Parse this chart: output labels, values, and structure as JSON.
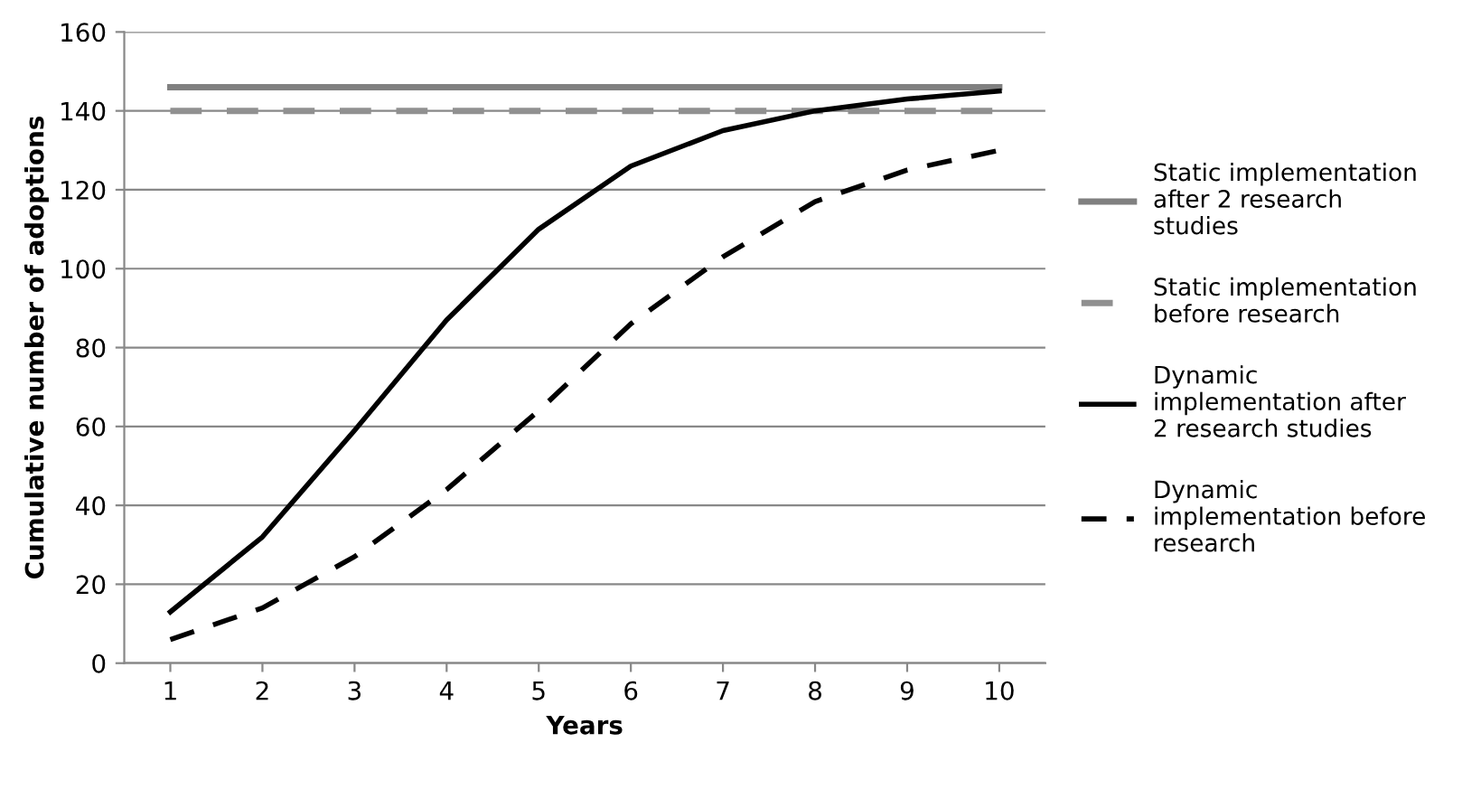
{
  "chart_data": {
    "type": "line",
    "xlabel": "Years",
    "ylabel": "Cumulative number of adoptions",
    "categories": [
      "1",
      "2",
      "3",
      "4",
      "5",
      "6",
      "7",
      "8",
      "9",
      "10"
    ],
    "series": [
      {
        "name": "Static implementation after 2 research studies",
        "color": "#808080",
        "line_style": "solid",
        "values": [
          146,
          146,
          146,
          146,
          146,
          146,
          146,
          146,
          146,
          146
        ]
      },
      {
        "name": "Static implementation before research",
        "color": "#909090",
        "line_style": "dashed",
        "values": [
          140,
          140,
          140,
          140,
          140,
          140,
          140,
          140,
          140,
          140
        ]
      },
      {
        "name": "Dynamic implementation after 2 research studies",
        "color": "#000000",
        "line_style": "solid",
        "values": [
          13,
          32,
          59,
          87,
          110,
          126,
          135,
          140,
          143,
          145
        ]
      },
      {
        "name": "Dynamic implementation before research",
        "color": "#000000",
        "line_style": "dashed",
        "values": [
          6,
          14,
          27,
          44,
          64,
          86,
          103,
          117,
          125,
          130
        ]
      }
    ],
    "ylim": [
      0,
      160
    ],
    "yticks": [
      0,
      20,
      40,
      60,
      80,
      100,
      120,
      140,
      160
    ],
    "grid": "y",
    "legend": "right"
  }
}
